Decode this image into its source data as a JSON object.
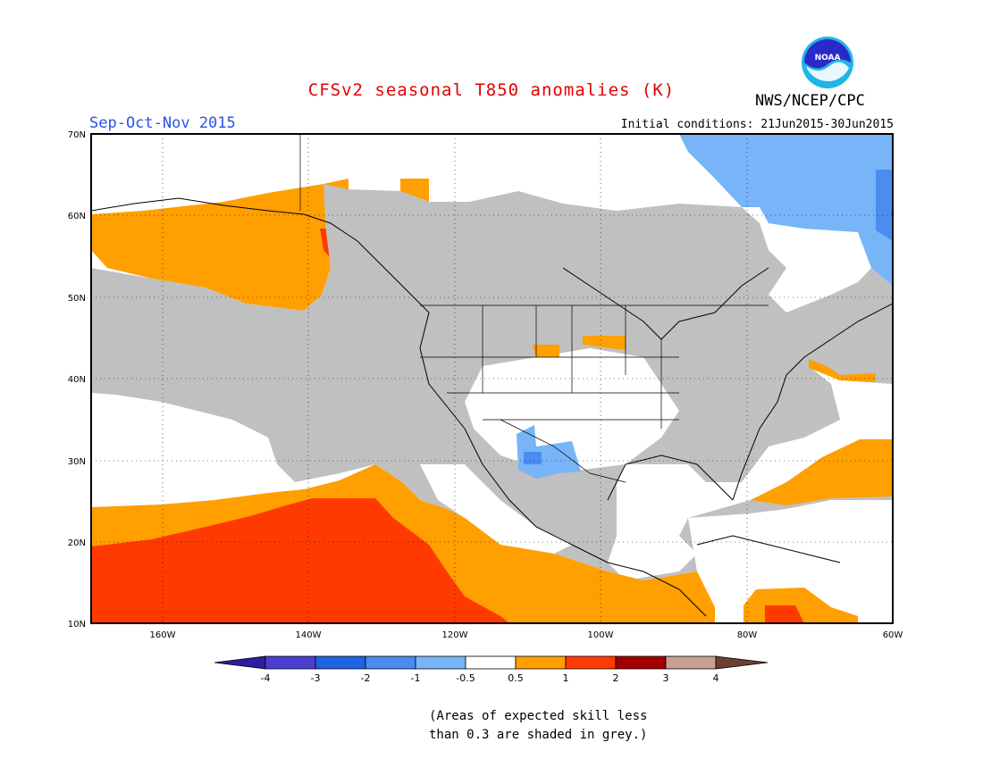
{
  "header": {
    "title": "CFSv2 seasonal T850 anomalies (K)",
    "season": "Sep-Oct-Nov 2015",
    "organization": "NWS/NCEP/CPC",
    "initial_conditions": "Initial conditions: 21Jun2015-30Jun2015",
    "logo_text": "NOAA"
  },
  "colors": {
    "title": "#e00000",
    "season": "#2a52e8",
    "grey_skill": "#c0c0c0",
    "orange": "#ff9f00",
    "red": "#ff3a00",
    "light_blue": "#78b4f8",
    "mid_blue": "#4a8cf0",
    "dark_blue": "#1e64e0"
  },
  "map": {
    "lat_labels": [
      "70N",
      "60N",
      "50N",
      "40N",
      "30N",
      "20N",
      "10N"
    ],
    "lon_labels": [
      "160W",
      "140W",
      "120W",
      "100W",
      "80W",
      "60W"
    ]
  },
  "colorbar": {
    "labels": [
      "-4",
      "-3",
      "-2",
      "-1",
      "-0.5",
      "0.5",
      "1",
      "2",
      "3",
      "4"
    ],
    "colors": [
      "#2c1ea0",
      "#4b3fd0",
      "#1e64e0",
      "#4a8cf0",
      "#78b4f8",
      "#ffffff",
      "#ff9f00",
      "#ff3a00",
      "#a00000",
      "#c8a090",
      "#6b4030"
    ]
  },
  "note": {
    "line1": "(Areas of expected skill less",
    "line2": "than 0.3 are shaded in grey.)"
  }
}
